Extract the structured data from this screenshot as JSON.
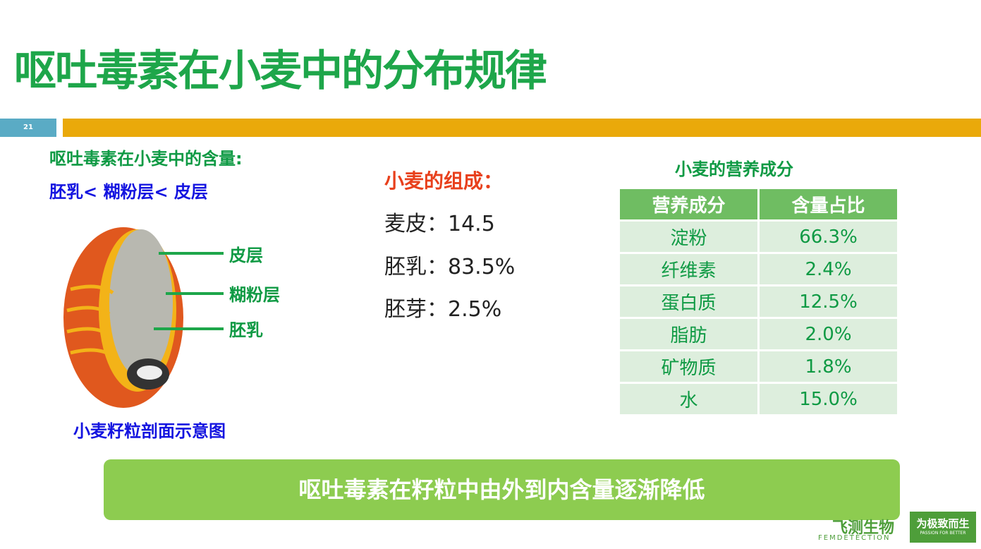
{
  "title": "呕吐毒素在小麦中的分布规律",
  "page_number": "21",
  "content_heading": "呕吐毒素在小麦中的含量:",
  "content_order": "胚乳< 糊粉层< 皮层",
  "diagram": {
    "labels": [
      "皮层",
      "糊粉层",
      "胚乳"
    ],
    "caption": "小麦籽粒剖面示意图"
  },
  "composition": {
    "heading": "小麦的组成：",
    "items": [
      "麦皮：14.5",
      "胚乳：83.5%",
      "胚芽：2.5%"
    ]
  },
  "nutrition": {
    "heading": "小麦的营养成分",
    "columns": [
      "营养成分",
      "含量占比"
    ],
    "rows": [
      [
        "淀粉",
        "66.3%"
      ],
      [
        "纤维素",
        "2.4%"
      ],
      [
        "蛋白质",
        "12.5%"
      ],
      [
        "脂肪",
        "2.0%"
      ],
      [
        "矿物质",
        "1.8%"
      ],
      [
        "水",
        "15.0%"
      ]
    ]
  },
  "banner": "呕吐毒素在籽粒中由外到内含量逐渐降低",
  "logo": {
    "name": "飞测生物",
    "en": "FEMDETECTION",
    "slogan": "为极致而生",
    "slogan_en": "PASSION FOR BETTER"
  },
  "colors": {
    "title": "#1ea64a",
    "accent_bar": "#eaa90a",
    "banner": "#8dcc50"
  }
}
